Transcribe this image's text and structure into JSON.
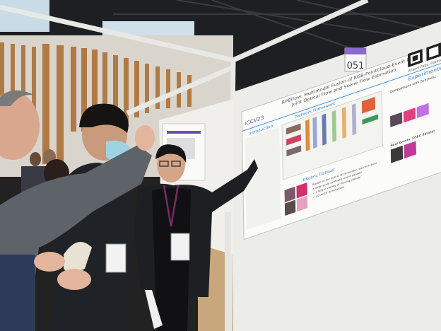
{
  "scene": {
    "board_number": "051",
    "poster": {
      "title_line1": "RPEFlow: Multimodal Fusion of RGB-PointCloud-Event for",
      "title_line2": "Joint Optical Flow and Scene Flow Estimation",
      "conference_logo": "ICCV23",
      "link_label": "Project Page, Dataset",
      "sections": {
        "introduction": "Introduction",
        "network": "Network Framework",
        "dataset": "EKubric Dataset",
        "experiments": "Experiments",
        "comparisons": "Comparisons with Synthetic",
        "real_events": "Real Events: DSEC dataset"
      },
      "dataset_text": [
        "Based on the Kubric 3D simulator, we contribute",
        "a large-scale synthetic event dataset",
        "✓ a larger variety of moving objects",
        "✓ richer GT annotations"
      ],
      "accent_color": "#2a7fd6"
    },
    "colors": {
      "ceiling": "#1c1c1e",
      "wood": "#b07a45",
      "board": "#f2f2ee",
      "floor": "#c9a77c",
      "lanyard": "#7a2a6a"
    }
  }
}
